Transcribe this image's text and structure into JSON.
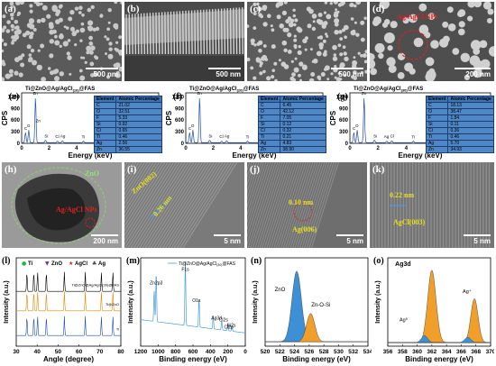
{
  "row1": [
    {
      "label": "(a)",
      "scale": "500 nm"
    },
    {
      "label": "(b)",
      "scale": "500 nm"
    },
    {
      "label": "(c)",
      "scale": "500 nm"
    },
    {
      "label": "(d)",
      "scale": "200 nm",
      "annotation": "Ag/AgCl NPs"
    }
  ],
  "eds": [
    {
      "label": "(e)",
      "title": "Ti@ZnO@Ag/AgCl",
      "sub": "(10)",
      "suffix": "@FAS",
      "ylabel": "CPS",
      "xlabel": "Energy (keV)",
      "yticks": [
        "0",
        "300",
        "600",
        "900",
        "1200"
      ],
      "xticks": [
        "0",
        "2",
        "4",
        "6",
        "8",
        "10"
      ],
      "peaks": [
        "O",
        "C",
        "Zn",
        "Si",
        "Ag",
        "Cl",
        "Ti",
        "F",
        "Zn",
        "Zn"
      ],
      "table_headers": [
        "Element",
        "Atomic Percentage"
      ],
      "table": [
        [
          "C",
          "21.02"
        ],
        [
          "O",
          "32.51"
        ],
        [
          "F",
          "5.33"
        ],
        [
          "Si",
          "0.92"
        ],
        [
          "Cl",
          "0.65"
        ],
        [
          "Ti",
          "0.46"
        ],
        [
          "Ag",
          "2.56"
        ],
        [
          "Zn",
          "36.55"
        ]
      ]
    },
    {
      "label": "(f)",
      "title": "Ti@ZnO@Ag/AgCl",
      "sub": "(20)",
      "suffix": "@FAS",
      "ylabel": "CPS",
      "xlabel": "Energy (keV)",
      "yticks": [
        "0",
        "300",
        "600",
        "900",
        "1200"
      ],
      "xticks": [
        "0",
        "2",
        "4",
        "6",
        "8",
        "10"
      ],
      "peaks": [
        "O",
        "C",
        "Zn",
        "Si",
        "Ag",
        "Cl",
        "Ti",
        "Zn",
        "Zn"
      ],
      "table_headers": [
        "Element",
        "Atomic Percentage"
      ],
      "table": [
        [
          "C",
          "6.45"
        ],
        [
          "O",
          "42.12"
        ],
        [
          "F",
          "7.05"
        ],
        [
          "Si",
          "0.12"
        ],
        [
          "Cl",
          "0.32"
        ],
        [
          "Ti",
          "0.21"
        ],
        [
          "Ag",
          "4.83"
        ],
        [
          "Zn",
          "38.90"
        ]
      ]
    },
    {
      "label": "(g)",
      "title": "Ti@ZnO@Ag/AgCl",
      "sub": "(30)",
      "suffix": "@FAS",
      "ylabel": "CPS",
      "xlabel": "Energy (keV)",
      "yticks": [
        "0",
        "300",
        "600",
        "900",
        "1200"
      ],
      "xticks": [
        "0",
        "2",
        "4",
        "6",
        "8",
        "10"
      ],
      "peaks": [
        "O",
        "C",
        "Zn",
        "Si",
        "Cl",
        "Ag",
        "Ti",
        "Zn"
      ],
      "table_headers": [
        "Element",
        "Atomic Percentage"
      ],
      "table": [
        [
          "C",
          "18.13"
        ],
        [
          "O",
          "38.47"
        ],
        [
          "F",
          "1.84"
        ],
        [
          "Si",
          "0.11"
        ],
        [
          "Cl",
          "0.36"
        ],
        [
          "Ti",
          "0.46"
        ],
        [
          "Ag",
          "5.70"
        ],
        [
          "Zn",
          "34.93"
        ]
      ]
    }
  ],
  "tem": [
    {
      "label": "(h)",
      "scale": "200 nm",
      "ann1": "ZnO",
      "ann2": "Ag/AgCl NPs"
    },
    {
      "label": "(i)",
      "scale": "5 nm",
      "ann1": "ZnO(002)",
      "ann2": "0.26 nm"
    },
    {
      "label": "(j)",
      "scale": "5 nm",
      "ann1": "0.10 nm",
      "ann2": "Ag(006)"
    },
    {
      "label": "(k)",
      "scale": "5 nm",
      "ann1": "0.22 nm",
      "ann2": "AgCl(003)"
    }
  ],
  "xrd": {
    "label": "(l)",
    "xlabel": "Angle (degree)",
    "ylabel": "Intensity (a.u.)",
    "xticks": [
      "30",
      "40",
      "50",
      "60",
      "70",
      "80"
    ],
    "legend": [
      {
        "sym": "●",
        "name": "Ti",
        "color": "#1db34a"
      },
      {
        "sym": "▼",
        "name": "ZnO",
        "color": "#7030a0"
      },
      {
        "sym": "★",
        "name": "AgCl",
        "color": "#e0201a"
      },
      {
        "sym": "♣",
        "name": "Ag",
        "color": "#444444"
      }
    ],
    "curves": [
      "Ti@ZnO@Ag/AgCl(30)@FAS",
      "Ti@ZnO",
      "Ti"
    ]
  },
  "xps_survey": {
    "label": "(m)",
    "legend": "Ti@ZnO@Ag/AgCl",
    "legend_sub": "(30)",
    "legend_suffix": "@FAS",
    "xlabel": "Binding energy (eV)",
    "ylabel": "Intensity (a.u.)",
    "xticks": [
      "1200",
      "1000",
      "800",
      "600",
      "400",
      "200",
      "0"
    ],
    "peaks": [
      "Zn2p3",
      "F1s",
      "O1s",
      "Ag3d",
      "Cl2s",
      "Si2s",
      "Cl2p"
    ]
  },
  "xps_o1s": {
    "label": "(n)",
    "xlabel": "Binding energy (eV)",
    "ylabel": "Intensity (a.u.)",
    "xticks": [
      "520",
      "522",
      "524",
      "526",
      "528",
      "530",
      "532",
      "534"
    ],
    "peaks": [
      "ZnO",
      "Zn-O-Si"
    ]
  },
  "xps_ag3d": {
    "label": "(o)",
    "title": "Ag3d",
    "xlabel": "Binding energy (eV)",
    "ylabel": "Intensity (a.u.)",
    "xticks": [
      "356",
      "358",
      "360",
      "362",
      "364",
      "366",
      "368",
      "370"
    ],
    "peaks": [
      "Ag⁰",
      "Ag⁺",
      "Ag⁰",
      "Ag⁺"
    ]
  }
}
